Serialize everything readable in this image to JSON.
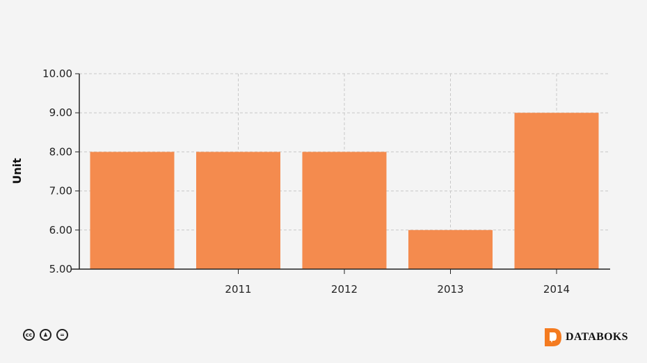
{
  "chart_data": {
    "type": "bar",
    "categories": [
      "",
      "2011",
      "2012",
      "2013",
      "2014"
    ],
    "values": [
      8,
      8,
      8,
      6,
      9
    ],
    "title": "",
    "xlabel": "",
    "ylabel": "Unit",
    "ylim": [
      5,
      10
    ],
    "yticks": [
      "5.00",
      "6.00",
      "7.00",
      "8.00",
      "9.00",
      "10.00"
    ],
    "grid": true,
    "bar_color": "#f48b4e"
  },
  "footer": {
    "license_icons": [
      "cc-icon",
      "by-icon",
      "nd-icon"
    ],
    "brand": "DATABOKS",
    "brand_color": "#f47b20"
  }
}
